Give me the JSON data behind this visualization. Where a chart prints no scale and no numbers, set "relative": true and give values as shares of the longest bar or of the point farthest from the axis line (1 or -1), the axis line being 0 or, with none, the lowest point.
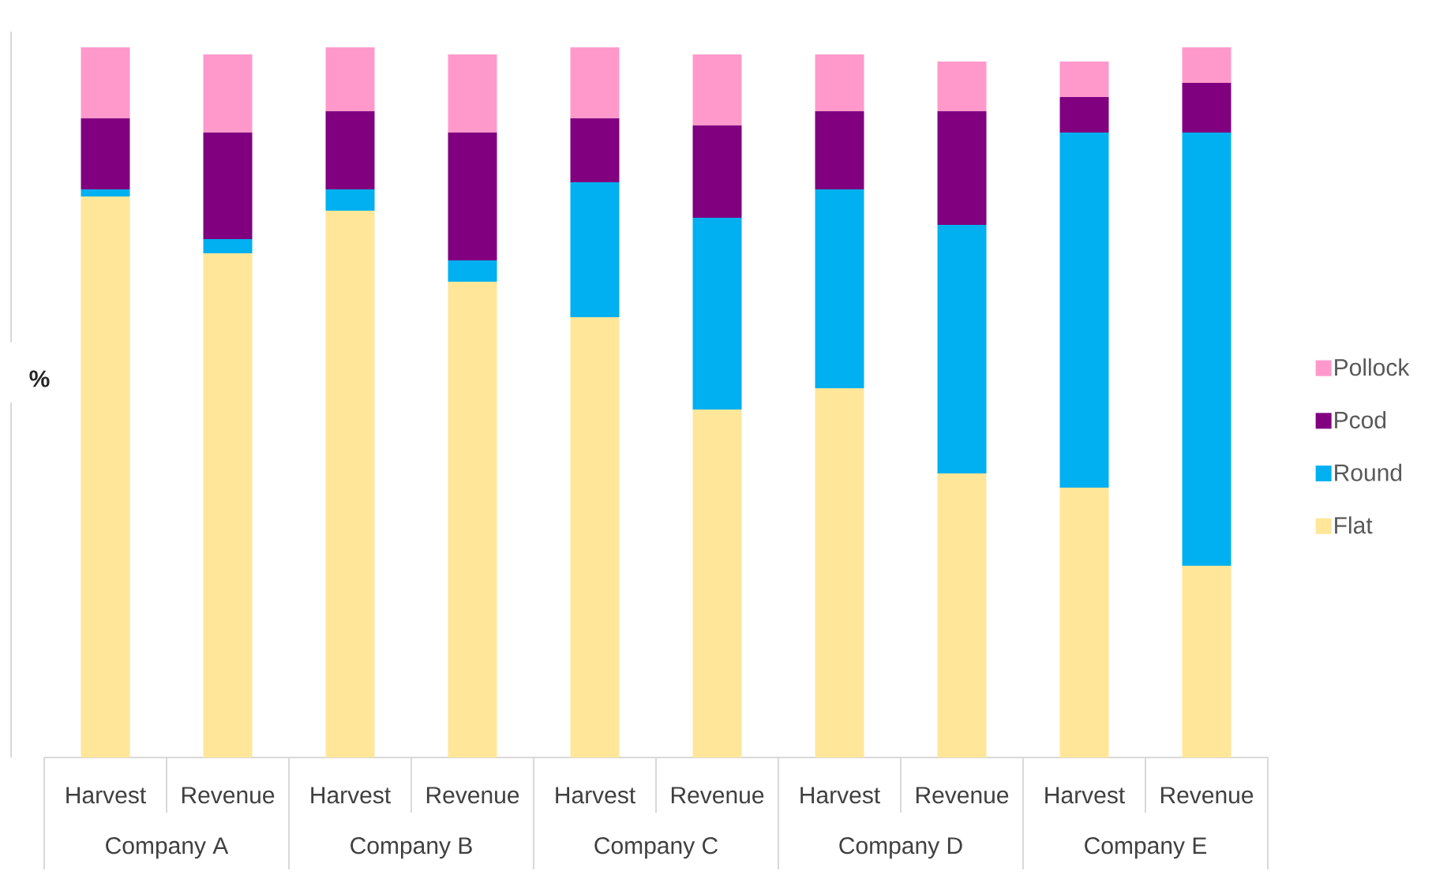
{
  "chart_data": {
    "type": "bar",
    "stacked": true,
    "relative": true,
    "ylabel": "%",
    "categories": [
      "Harvest",
      "Revenue",
      "Harvest",
      "Revenue",
      "Harvest",
      "Revenue",
      "Harvest",
      "Revenue",
      "Harvest",
      "Revenue"
    ],
    "annotations": [
      "Company A",
      "Company B",
      "Company C",
      "Company D",
      "Company E"
    ],
    "series": [
      {
        "name": "Flat",
        "color": "#ffe699",
        "values": [
          0.79,
          0.71,
          0.77,
          0.67,
          0.62,
          0.49,
          0.52,
          0.4,
          0.38,
          0.27
        ]
      },
      {
        "name": "Round",
        "color": "#00b0f0",
        "values": [
          0.01,
          0.02,
          0.03,
          0.03,
          0.19,
          0.27,
          0.28,
          0.35,
          0.5,
          0.61
        ]
      },
      {
        "name": "Pcod",
        "color": "#800080",
        "values": [
          0.1,
          0.15,
          0.11,
          0.18,
          0.09,
          0.13,
          0.11,
          0.16,
          0.05,
          0.07
        ]
      },
      {
        "name": "Pollock",
        "color": "#ff99cc",
        "values": [
          0.1,
          0.11,
          0.09,
          0.11,
          0.1,
          0.1,
          0.08,
          0.07,
          0.05,
          0.05
        ]
      }
    ],
    "legend": "right"
  }
}
